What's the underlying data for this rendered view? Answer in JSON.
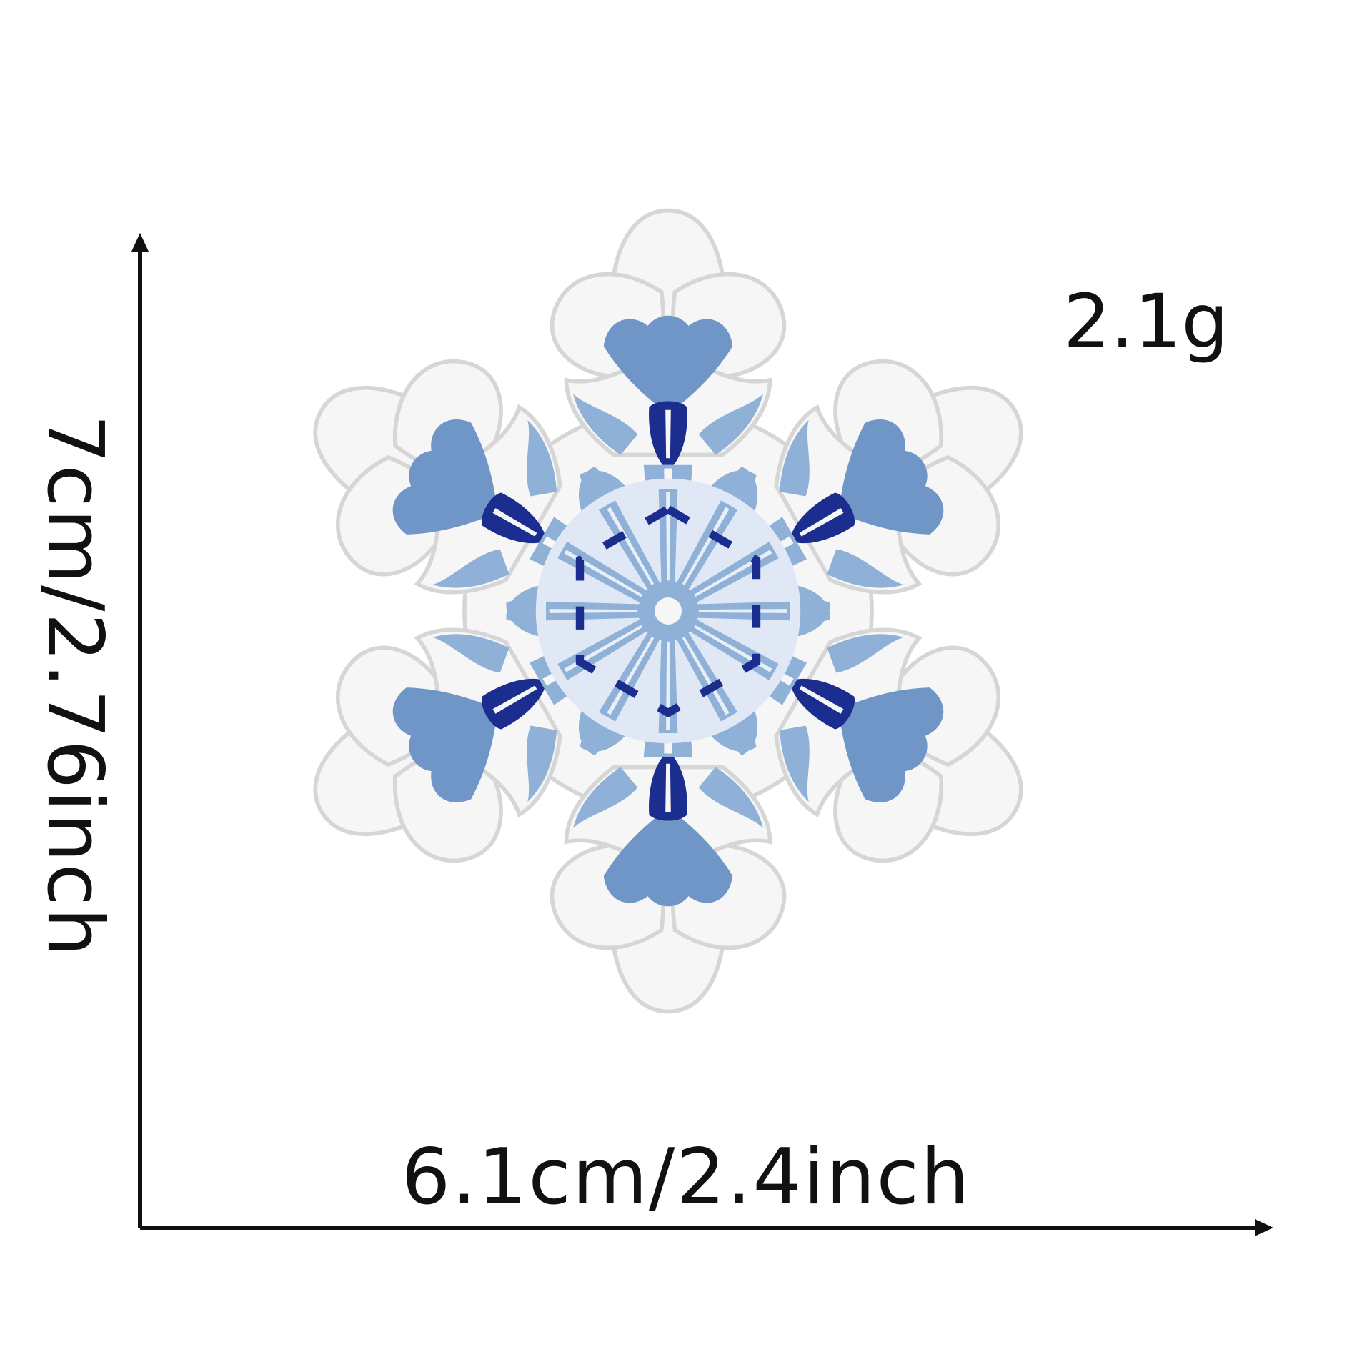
{
  "product": {
    "weight": "2.1g",
    "width_label": "6.1cm/2.4inch",
    "height_label": "7cm/2.76inch"
  },
  "colors": {
    "background": "#ffffff",
    "patch_white": "#f3f3f3",
    "patch_border": "#d9d9d9",
    "light_blue": "#8fb0d7",
    "mid_blue": "#6f96c6",
    "navy": "#1b2d8f",
    "line": "#111111"
  },
  "image": {
    "subject": "snowflake-embroidered-patch"
  }
}
